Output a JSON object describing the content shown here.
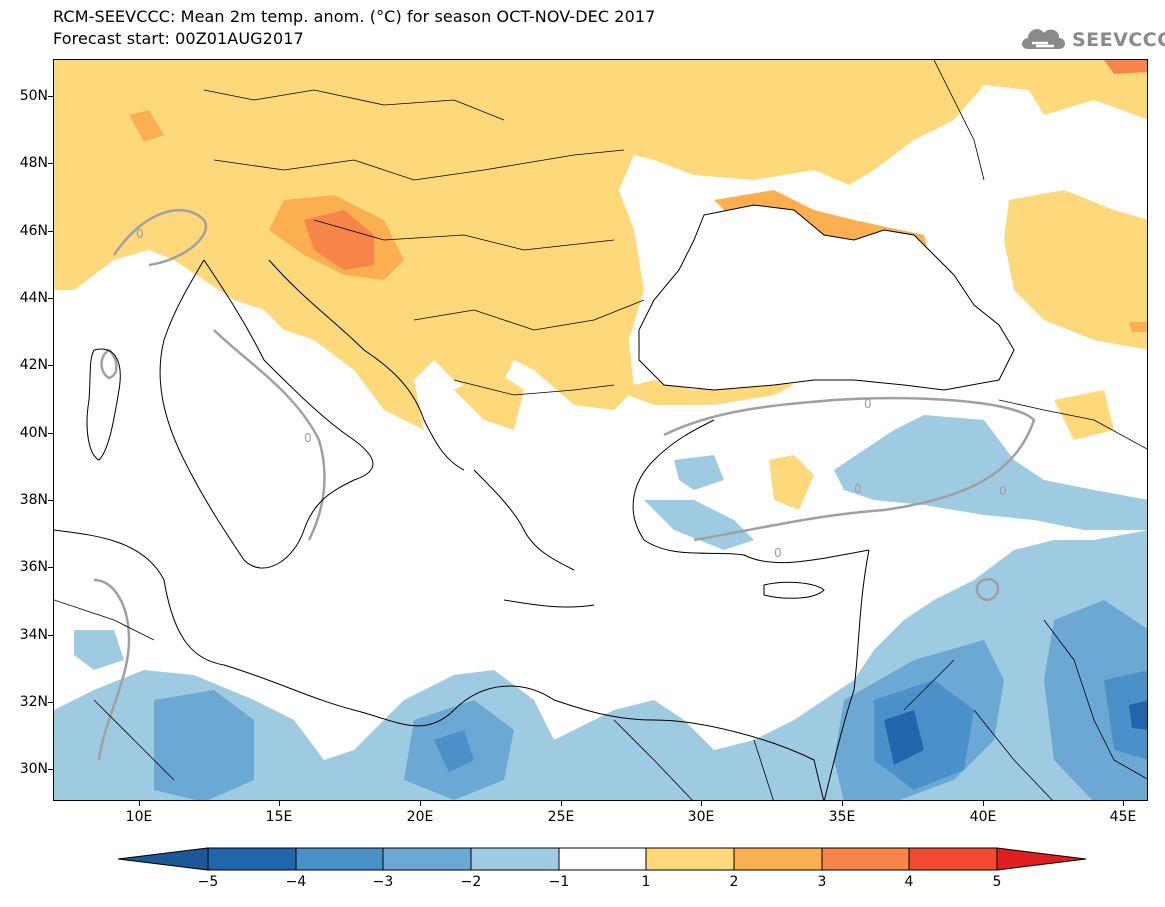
{
  "header": {
    "title_line1": "RCM-SEEVCCC: Mean 2m temp. anom. (°C) for season OCT-NOV-DEC 2017",
    "title_line2": "Forecast start: 00Z01AUG2017"
  },
  "logo": {
    "text": "SEEVCCC",
    "icon": "cloud-icon"
  },
  "map": {
    "lat_labels": [
      "50N",
      "48N",
      "46N",
      "44N",
      "42N",
      "40N",
      "38N",
      "36N",
      "34N",
      "32N",
      "30N"
    ],
    "lon_labels": [
      "10E",
      "15E",
      "20E",
      "25E",
      "30E",
      "35E",
      "40E",
      "45E"
    ],
    "contour_label": "0",
    "colors": {
      "land_border": "#000000",
      "contour": "#a0a0a0",
      "warm1": "#fed97b",
      "warm2": "#fbaf51",
      "warm3": "#f7854a",
      "warm4": "#f04a31",
      "cool1": "#9fcbe2",
      "cool2": "#6aadd5",
      "cool3": "#3f89c4",
      "cool4": "#2166ac"
    }
  },
  "colorbar": {
    "labels": [
      "−5",
      "−4",
      "−3",
      "−2",
      "−1",
      "1",
      "2",
      "3",
      "4",
      "5"
    ],
    "colors": [
      "#2166ac",
      "#2f72b4",
      "#4a91c9",
      "#6ba9d4",
      "#9fcbe2",
      "#ffffff",
      "#fed97b",
      "#fbaf51",
      "#f7854a",
      "#f04a31",
      "#e01e1e",
      "#1c5797"
    ]
  }
}
